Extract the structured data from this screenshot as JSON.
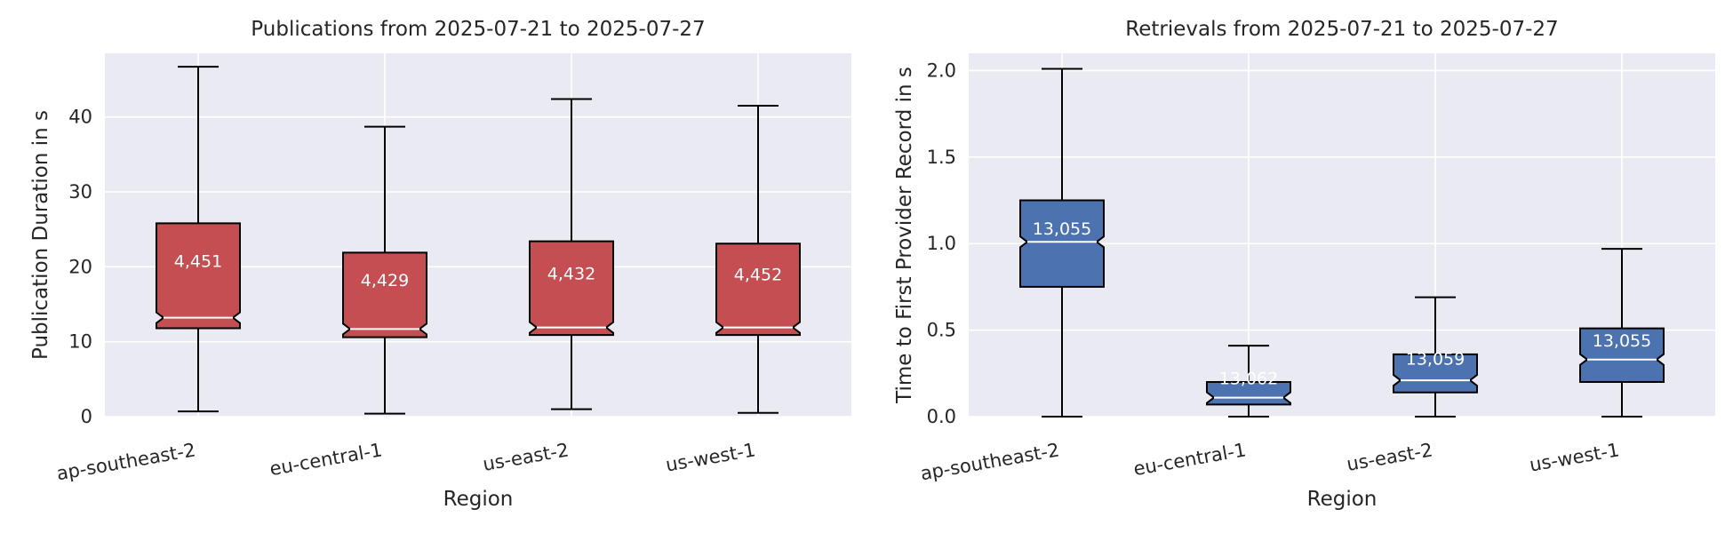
{
  "colors": {
    "background": "#eaeaf2",
    "grid": "#ffffff",
    "publications_box": "#c44e52",
    "retrievals_box": "#4c72b0",
    "whisker": "#000000",
    "median": "#ffffff",
    "count_text": "#ffffff"
  },
  "chart_data": [
    {
      "type": "boxplot",
      "title": "Publications from 2025-07-21 to 2025-07-27",
      "xlabel": "Region",
      "ylabel": "Publication Duration in s",
      "ylim": [
        0,
        48.5
      ],
      "yticks": [
        0,
        10,
        20,
        30,
        40
      ],
      "notched": true,
      "grid": true,
      "categories": [
        "ap-southeast-2",
        "eu-central-1",
        "us-east-2",
        "us-west-1"
      ],
      "boxes": [
        {
          "whisker_low": 0.7,
          "q1": 11.8,
          "median": 13.2,
          "q3": 25.8,
          "whisker_high": 46.7,
          "count": "4,451"
        },
        {
          "whisker_low": 0.4,
          "q1": 10.6,
          "median": 11.7,
          "q3": 21.9,
          "whisker_high": 38.7,
          "count": "4,429"
        },
        {
          "whisker_low": 1.0,
          "q1": 10.9,
          "median": 11.9,
          "q3": 23.4,
          "whisker_high": 42.4,
          "count": "4,432"
        },
        {
          "whisker_low": 0.5,
          "q1": 10.9,
          "median": 11.9,
          "q3": 23.1,
          "whisker_high": 41.5,
          "count": "4,452"
        }
      ]
    },
    {
      "type": "boxplot",
      "title": "Retrievals from 2025-07-21 to 2025-07-27",
      "xlabel": "Region",
      "ylabel": "Time to First Provider Record in s",
      "ylim": [
        0,
        2.1
      ],
      "yticks": [
        "0.0",
        "0.5",
        "1.0",
        "1.5",
        "2.0"
      ],
      "notched": true,
      "grid": true,
      "categories": [
        "ap-southeast-2",
        "eu-central-1",
        "us-east-2",
        "us-west-1"
      ],
      "boxes": [
        {
          "whisker_low": 0.0,
          "q1": 0.75,
          "median": 1.01,
          "q3": 1.25,
          "whisker_high": 2.01,
          "count": "13,055"
        },
        {
          "whisker_low": 0.0,
          "q1": 0.07,
          "median": 0.11,
          "q3": 0.2,
          "whisker_high": 0.41,
          "count": "13,062"
        },
        {
          "whisker_low": 0.0,
          "q1": 0.14,
          "median": 0.21,
          "q3": 0.36,
          "whisker_high": 0.69,
          "count": "13,059"
        },
        {
          "whisker_low": 0.0,
          "q1": 0.2,
          "median": 0.33,
          "q3": 0.51,
          "whisker_high": 0.97,
          "count": "13,055"
        }
      ]
    }
  ]
}
